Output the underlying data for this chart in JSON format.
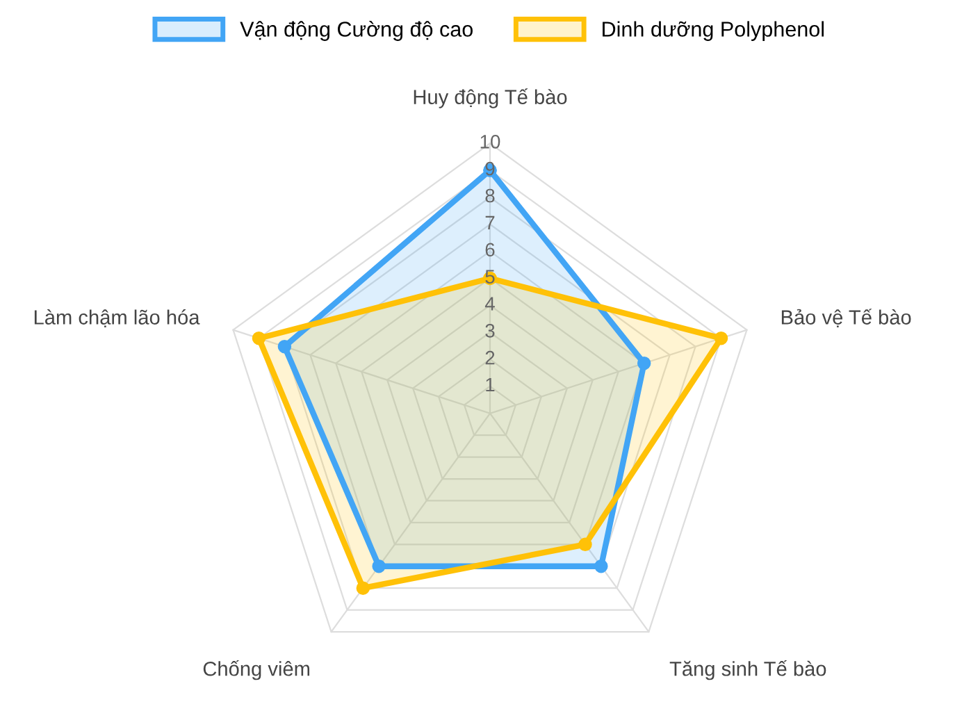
{
  "chart_data": {
    "type": "radar",
    "categories": [
      "Huy động Tế bào",
      "Bảo vệ Tế bào",
      "Tăng sinh Tế bào",
      "Chống viêm",
      "Làm chậm lão hóa"
    ],
    "series": [
      {
        "name": "Vận động Cường độ cao",
        "color": "#42a5f5",
        "values": [
          9,
          6,
          7,
          7,
          8
        ]
      },
      {
        "name": "Dinh dưỡng Polyphenol",
        "color": "#ffc107",
        "values": [
          5,
          9,
          6,
          8,
          9
        ]
      }
    ],
    "ylim": [
      0,
      10
    ],
    "yticks": [
      1,
      2,
      3,
      4,
      5,
      6,
      7,
      8,
      9,
      10
    ],
    "grid": true,
    "legend": "top",
    "marker": "circle",
    "line_style": "solid"
  }
}
